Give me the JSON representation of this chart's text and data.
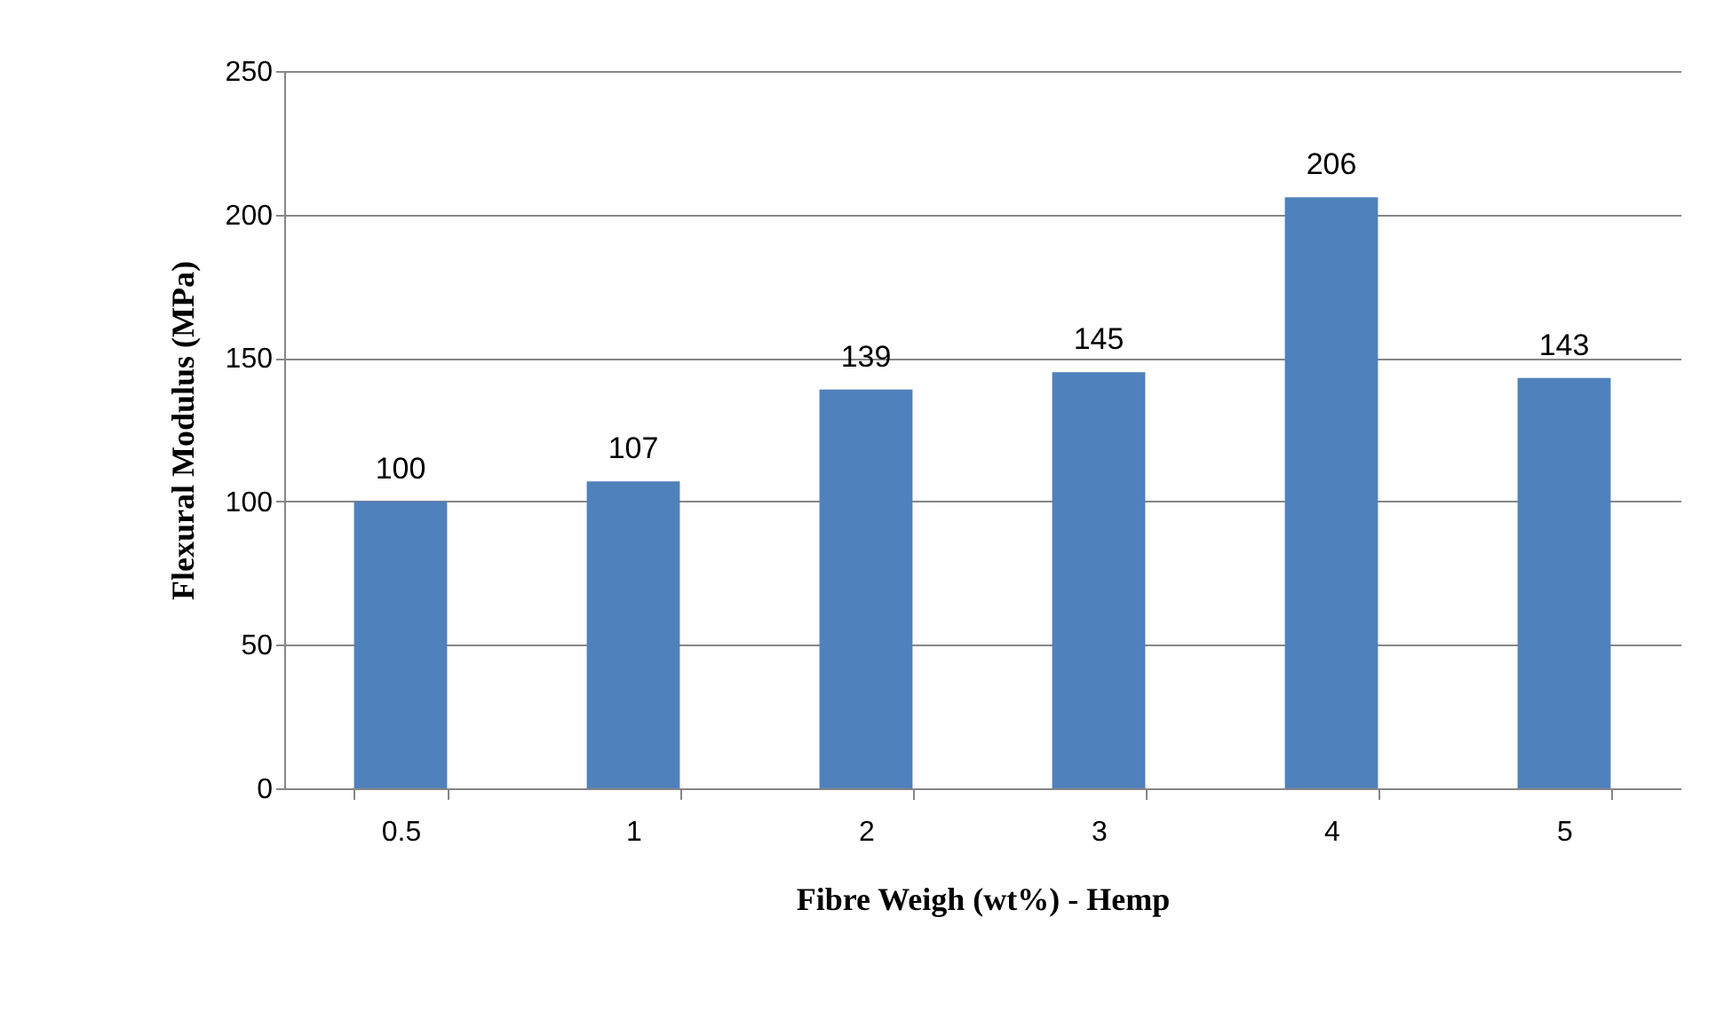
{
  "chart_data": {
    "type": "bar",
    "xlabel": "Fibre Weigh (wt%) - Hemp",
    "ylabel": "Flexural Modulus (MPa)",
    "categories": [
      "0.5",
      "1",
      "2",
      "3",
      "4",
      "5"
    ],
    "values": [
      100,
      107,
      139,
      145,
      206,
      143
    ],
    "color": "#4f81bd",
    "ylim": [
      0,
      250
    ],
    "yticks": [
      0,
      50,
      100,
      150,
      200,
      250
    ],
    "grid": "y",
    "data_labels": true
  }
}
